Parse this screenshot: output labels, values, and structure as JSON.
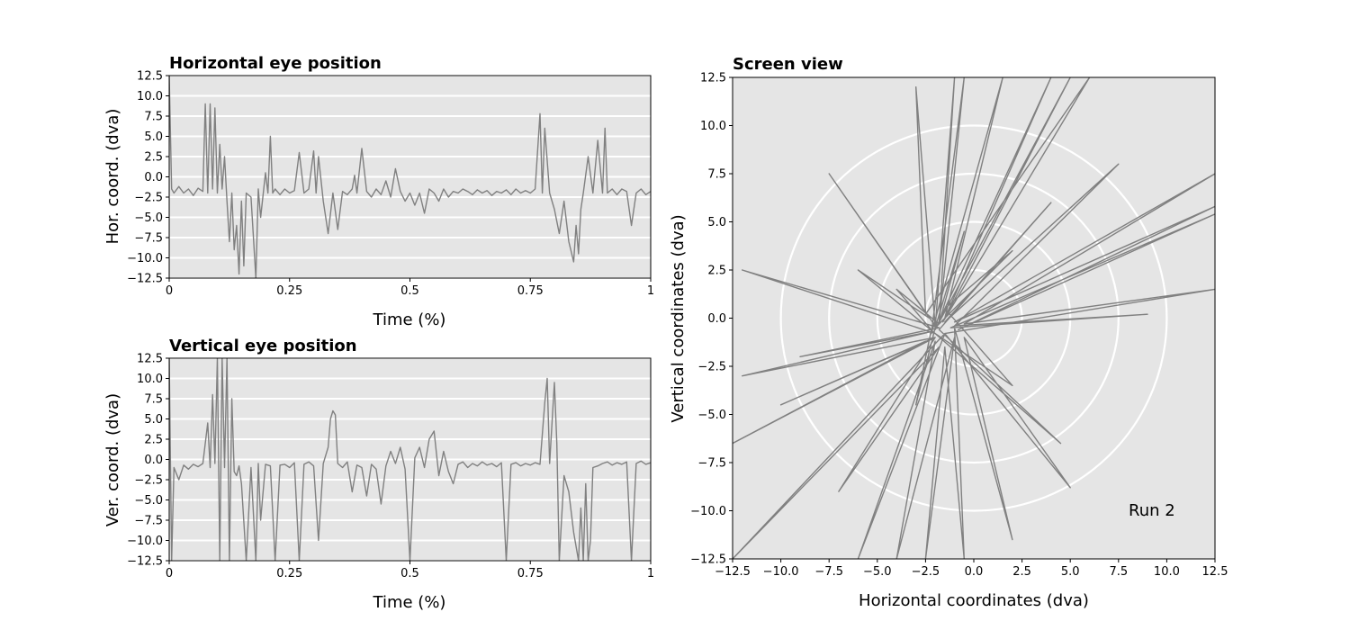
{
  "chart_data": [
    {
      "id": "hor",
      "type": "line",
      "title": "Horizontal eye position",
      "xlabel": "Time (%)",
      "ylabel": "Hor. coord. (dva)",
      "xlim": [
        0,
        1
      ],
      "ylim": [
        -12.5,
        12.5
      ],
      "x_ticks": [
        "0",
        "0.25",
        "0.5",
        "0.75",
        "1"
      ],
      "y_ticks": [
        "−12.5",
        "−10.0",
        "−7.5",
        "−5.0",
        "−2.5",
        "0.0",
        "2.5",
        "5.0",
        "7.5",
        "10.0",
        "12.5"
      ],
      "grid": "horizontal",
      "series": [
        {
          "color": "#808080",
          "x": [
            0.0,
            0.005,
            0.01,
            0.02,
            0.03,
            0.04,
            0.05,
            0.06,
            0.07,
            0.075,
            0.08,
            0.085,
            0.09,
            0.095,
            0.1,
            0.105,
            0.11,
            0.115,
            0.12,
            0.125,
            0.13,
            0.135,
            0.14,
            0.145,
            0.15,
            0.155,
            0.16,
            0.17,
            0.18,
            0.185,
            0.19,
            0.2,
            0.205,
            0.21,
            0.215,
            0.22,
            0.23,
            0.24,
            0.25,
            0.26,
            0.27,
            0.28,
            0.29,
            0.3,
            0.305,
            0.31,
            0.32,
            0.33,
            0.34,
            0.35,
            0.36,
            0.37,
            0.38,
            0.385,
            0.39,
            0.4,
            0.41,
            0.42,
            0.43,
            0.44,
            0.45,
            0.46,
            0.47,
            0.48,
            0.49,
            0.5,
            0.51,
            0.52,
            0.53,
            0.54,
            0.55,
            0.56,
            0.57,
            0.58,
            0.59,
            0.6,
            0.61,
            0.62,
            0.63,
            0.64,
            0.65,
            0.66,
            0.67,
            0.68,
            0.69,
            0.7,
            0.71,
            0.72,
            0.73,
            0.74,
            0.75,
            0.76,
            0.77,
            0.775,
            0.78,
            0.79,
            0.8,
            0.81,
            0.82,
            0.83,
            0.84,
            0.845,
            0.85,
            0.855,
            0.86,
            0.87,
            0.88,
            0.89,
            0.9,
            0.905,
            0.91,
            0.92,
            0.93,
            0.94,
            0.95,
            0.96,
            0.97,
            0.98,
            0.99,
            1.0
          ],
          "y": [
            12.5,
            -1.5,
            -2.0,
            -1.2,
            -2.0,
            -1.5,
            -2.3,
            -1.4,
            -1.8,
            9.0,
            -2.0,
            9.0,
            -1.5,
            8.5,
            -2.0,
            4.0,
            -1.5,
            2.5,
            -3.0,
            -8.0,
            -2.0,
            -9.0,
            -6.0,
            -12.0,
            -3.0,
            -11.0,
            -2.0,
            -2.5,
            -12.5,
            -1.5,
            -5.0,
            0.5,
            -2.0,
            5.0,
            -2.0,
            -1.5,
            -2.2,
            -1.5,
            -2.0,
            -1.7,
            3.0,
            -2.0,
            -1.5,
            3.2,
            -2.0,
            2.5,
            -3.0,
            -7.0,
            -2.0,
            -6.5,
            -1.8,
            -2.2,
            -1.5,
            0.2,
            -2.0,
            3.5,
            -1.8,
            -2.5,
            -1.5,
            -2.2,
            -0.5,
            -2.5,
            1.0,
            -1.8,
            -3.0,
            -2.0,
            -3.5,
            -2.0,
            -4.5,
            -1.5,
            -2.0,
            -3.0,
            -1.5,
            -2.5,
            -1.8,
            -2.0,
            -1.5,
            -1.8,
            -2.2,
            -1.6,
            -2.0,
            -1.7,
            -2.3,
            -1.8,
            -2.0,
            -1.6,
            -2.2,
            -1.5,
            -2.0,
            -1.7,
            -2.0,
            -1.5,
            7.8,
            -2.0,
            6.0,
            -2.0,
            -4.0,
            -7.0,
            -3.0,
            -8.0,
            -10.5,
            -6.0,
            -9.5,
            -4.0,
            -2.0,
            2.5,
            -2.0,
            4.5,
            -2.0,
            6.0,
            -2.0,
            -1.5,
            -2.2,
            -1.5,
            -1.8,
            -6.0,
            -2.0,
            -1.5,
            -2.2,
            -1.8
          ]
        }
      ]
    },
    {
      "id": "ver",
      "type": "line",
      "title": "Vertical eye position",
      "xlabel": "Time (%)",
      "ylabel": "Ver. coord. (dva)",
      "xlim": [
        0,
        1
      ],
      "ylim": [
        -12.5,
        12.5
      ],
      "x_ticks": [
        "0",
        "0.25",
        "0.5",
        "0.75",
        "1"
      ],
      "y_ticks": [
        "−12.5",
        "−10.0",
        "−7.5",
        "−5.0",
        "−2.5",
        "0.0",
        "2.5",
        "5.0",
        "7.5",
        "10.0",
        "12.5"
      ],
      "grid": "horizontal",
      "series": [
        {
          "color": "#808080",
          "x": [
            0.0,
            0.005,
            0.01,
            0.02,
            0.03,
            0.04,
            0.05,
            0.06,
            0.07,
            0.08,
            0.085,
            0.09,
            0.095,
            0.1,
            0.105,
            0.11,
            0.115,
            0.12,
            0.125,
            0.13,
            0.135,
            0.14,
            0.145,
            0.15,
            0.16,
            0.17,
            0.18,
            0.185,
            0.19,
            0.2,
            0.21,
            0.22,
            0.23,
            0.24,
            0.25,
            0.26,
            0.27,
            0.28,
            0.29,
            0.3,
            0.31,
            0.32,
            0.33,
            0.335,
            0.34,
            0.345,
            0.35,
            0.36,
            0.37,
            0.38,
            0.39,
            0.4,
            0.41,
            0.42,
            0.43,
            0.44,
            0.45,
            0.46,
            0.47,
            0.48,
            0.49,
            0.5,
            0.51,
            0.52,
            0.53,
            0.54,
            0.55,
            0.56,
            0.57,
            0.58,
            0.59,
            0.6,
            0.61,
            0.62,
            0.63,
            0.64,
            0.65,
            0.66,
            0.67,
            0.68,
            0.69,
            0.7,
            0.71,
            0.72,
            0.73,
            0.74,
            0.75,
            0.76,
            0.77,
            0.78,
            0.785,
            0.79,
            0.8,
            0.805,
            0.81,
            0.82,
            0.83,
            0.84,
            0.85,
            0.855,
            0.86,
            0.865,
            0.87,
            0.875,
            0.88,
            0.89,
            0.9,
            0.91,
            0.92,
            0.93,
            0.94,
            0.95,
            0.96,
            0.97,
            0.98,
            0.99,
            1.0
          ],
          "y": [
            12.5,
            -12.5,
            -1.0,
            -2.5,
            -0.7,
            -1.2,
            -0.6,
            -0.9,
            -0.5,
            4.5,
            -1.0,
            8.0,
            -0.5,
            12.5,
            -12.5,
            12.5,
            -1.0,
            12.5,
            -12.5,
            7.5,
            -1.5,
            -2.0,
            -0.8,
            -3.0,
            -12.5,
            -1.0,
            -12.5,
            -0.5,
            -7.5,
            -0.6,
            -0.8,
            -12.5,
            -0.7,
            -0.6,
            -1.0,
            -0.4,
            -12.5,
            -0.6,
            -0.3,
            -0.8,
            -10.0,
            -0.5,
            1.5,
            5.0,
            6.0,
            5.5,
            -0.5,
            -1.0,
            -0.3,
            -4.0,
            -0.7,
            -1.0,
            -4.5,
            -0.6,
            -1.2,
            -5.5,
            -0.8,
            1.0,
            -0.5,
            1.5,
            -1.2,
            -12.5,
            0.2,
            1.5,
            -1.0,
            2.5,
            3.5,
            -2.0,
            1.0,
            -1.5,
            -3.0,
            -0.6,
            -0.3,
            -1.0,
            -0.5,
            -0.8,
            -0.3,
            -0.7,
            -0.5,
            -0.9,
            -0.4,
            -12.5,
            -0.6,
            -0.4,
            -0.8,
            -0.5,
            -0.7,
            -0.4,
            -0.6,
            7.0,
            10.0,
            -0.5,
            9.5,
            2.0,
            -12.5,
            -2.0,
            -4.0,
            -9.0,
            -12.5,
            -6.0,
            -12.5,
            -3.0,
            -12.5,
            -10.0,
            -1.0,
            -0.8,
            -0.5,
            -0.3,
            -0.7,
            -0.4,
            -0.6,
            -0.3,
            -12.5,
            -0.5,
            -0.2,
            -0.6,
            -0.4
          ]
        }
      ]
    },
    {
      "id": "screen",
      "type": "line",
      "title": "Screen view",
      "xlabel": "Horizontal coordinates (dva)",
      "ylabel": "Vertical coordinates (dva)",
      "xlim": [
        -12.5,
        12.5
      ],
      "ylim": [
        -12.5,
        12.5
      ],
      "x_ticks": [
        "−12.5",
        "−10.0",
        "−7.5",
        "−5.0",
        "−2.5",
        "0.0",
        "2.5",
        "5.0",
        "7.5",
        "10.0",
        "12.5"
      ],
      "y_ticks": [
        "−12.5",
        "−10.0",
        "−7.5",
        "−5.0",
        "−2.5",
        "0.0",
        "2.5",
        "5.0",
        "7.5",
        "10.0",
        "12.5"
      ],
      "grid": "polar",
      "circle_radii": [
        2.5,
        5.0,
        7.5,
        10.0
      ],
      "circle_center": [
        0.0,
        0.0
      ],
      "annotation": "Run 2",
      "series": [
        {
          "color": "#808080",
          "points": [
            [
              -2.0,
              -0.5
            ],
            [
              -1.0,
              12.5
            ],
            [
              -1.8,
              -0.3
            ],
            [
              -0.5,
              12.5
            ],
            [
              -2.2,
              -0.8
            ],
            [
              1.5,
              12.5
            ],
            [
              -1.5,
              0.0
            ],
            [
              4.0,
              12.5
            ],
            [
              -2.0,
              -0.6
            ],
            [
              5.0,
              12.5
            ],
            [
              -1.6,
              -0.2
            ],
            [
              6.0,
              12.5
            ],
            [
              -2.5,
              0.2
            ],
            [
              -3.0,
              12.0
            ],
            [
              -2.0,
              -0.4
            ],
            [
              -7.5,
              7.5
            ],
            [
              -2.3,
              0.0
            ],
            [
              -6.0,
              2.5
            ],
            [
              -2.0,
              -0.8
            ],
            [
              -12.0,
              2.5
            ],
            [
              -1.8,
              -0.5
            ],
            [
              -9.0,
              -2.0
            ],
            [
              -2.2,
              -0.7
            ],
            [
              -12.0,
              -3.0
            ],
            [
              -2.0,
              -1.0
            ],
            [
              -10.0,
              -4.5
            ],
            [
              -2.5,
              -1.2
            ],
            [
              -12.5,
              -6.5
            ],
            [
              -2.0,
              -1.0
            ],
            [
              -7.0,
              -9.0
            ],
            [
              -1.8,
              -1.5
            ],
            [
              -12.5,
              -12.5
            ],
            [
              -1.5,
              -0.8
            ],
            [
              -6.0,
              -12.5
            ],
            [
              -2.0,
              -1.2
            ],
            [
              -4.0,
              -12.5
            ],
            [
              -1.0,
              -1.0
            ],
            [
              -2.5,
              -12.5
            ],
            [
              -1.5,
              -1.5
            ],
            [
              -0.5,
              -12.5
            ],
            [
              -1.0,
              -0.5
            ],
            [
              2.0,
              -11.5
            ],
            [
              -0.5,
              -1.0
            ],
            [
              5.0,
              -8.8
            ],
            [
              -1.5,
              -0.8
            ],
            [
              12.5,
              1.5
            ],
            [
              -0.5,
              -0.3
            ],
            [
              12.5,
              7.5
            ],
            [
              -1.0,
              -0.2
            ],
            [
              12.5,
              5.8
            ],
            [
              -0.8,
              -0.6
            ],
            [
              12.5,
              5.4
            ],
            [
              -1.2,
              -0.5
            ],
            [
              9.0,
              0.2
            ],
            [
              -1.0,
              -0.4
            ],
            [
              7.5,
              8.0
            ],
            [
              -1.5,
              -0.2
            ],
            [
              4.0,
              6.0
            ],
            [
              -1.8,
              -0.6
            ],
            [
              4.5,
              -6.5
            ],
            [
              -2.0,
              -0.8
            ],
            [
              2.0,
              -3.5
            ],
            [
              -1.5,
              0.5
            ],
            [
              2.0,
              3.5
            ],
            [
              -2.0,
              -0.5
            ],
            [
              -0.5,
              4.5
            ],
            [
              -1.8,
              -0.3
            ],
            [
              -4.0,
              1.5
            ],
            [
              -2.2,
              -0.6
            ],
            [
              -3.0,
              -4.5
            ],
            [
              -2.0,
              -0.5
            ]
          ]
        }
      ]
    }
  ]
}
